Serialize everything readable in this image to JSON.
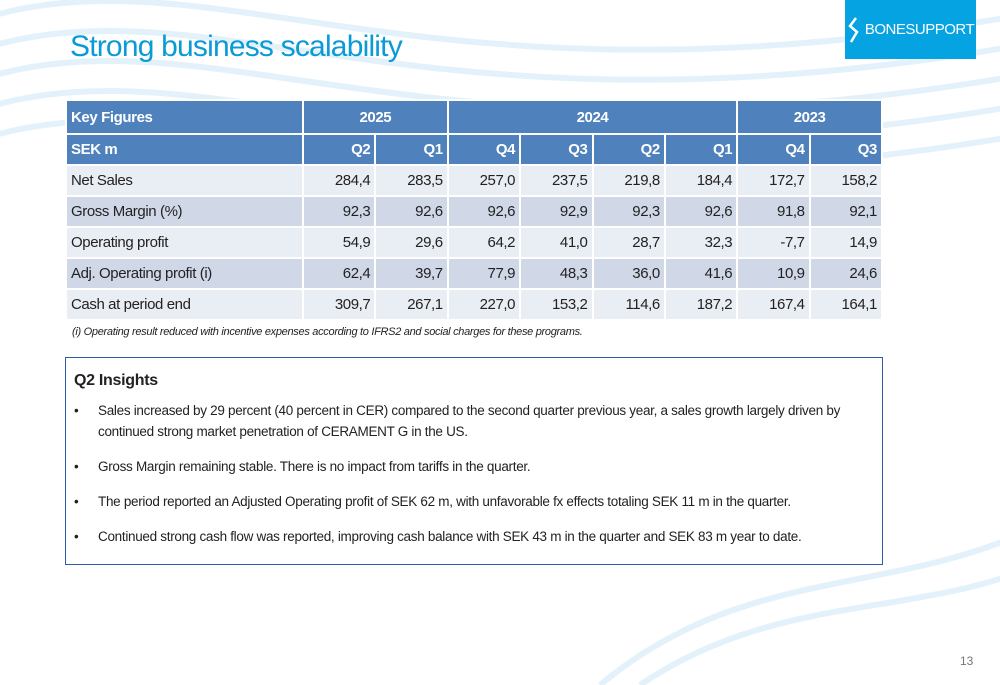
{
  "title": "Strong business scalability",
  "logo_text": "BONESUPPORT",
  "table": {
    "header_label": "Key Figures",
    "years": [
      {
        "label": "2025",
        "span": 2
      },
      {
        "label": "2024",
        "span": 4
      },
      {
        "label": "2023",
        "span": 2
      }
    ],
    "unit_label": "SEK m",
    "quarters": [
      "Q2",
      "Q1",
      "Q4",
      "Q3",
      "Q2",
      "Q1",
      "Q4",
      "Q3"
    ],
    "rows": [
      {
        "label": "Net Sales",
        "values": [
          "284,4",
          "283,5",
          "257,0",
          "237,5",
          "219,8",
          "184,4",
          "172,7",
          "158,2"
        ]
      },
      {
        "label": "Gross Margin (%)",
        "values": [
          "92,3",
          "92,6",
          "92,6",
          "92,9",
          "92,3",
          "92,6",
          "91,8",
          "92,1"
        ]
      },
      {
        "label": "Operating profit",
        "values": [
          "54,9",
          "29,6",
          "64,2",
          "41,0",
          "28,7",
          "32,3",
          "-7,7",
          "14,9"
        ]
      },
      {
        "label": "Adj. Operating profit (i)",
        "values": [
          "62,4",
          "39,7",
          "77,9",
          "48,3",
          "36,0",
          "41,6",
          "10,9",
          "24,6"
        ]
      },
      {
        "label": "Cash at period end",
        "values": [
          "309,7",
          "267,1",
          "227,0",
          "153,2",
          "114,6",
          "187,2",
          "167,4",
          "164,1"
        ]
      }
    ]
  },
  "footnote": "(i) Operating result reduced with incentive expenses according to IFRS2 and social charges for these programs.",
  "insights": {
    "heading": "Q2 Insights",
    "bullets": [
      "Sales increased by 29 percent (40 percent in CER) compared to the second quarter previous year, a sales growth largely driven by continued strong market penetration of CERAMENT G in the US.",
      "Gross Margin remaining stable. There is no impact from tariffs in the quarter.",
      "The period reported an Adjusted Operating profit of SEK 62 m, with unfavorable fx effects totaling SEK 11 m in the quarter.",
      "Continued strong cash flow was reported, improving cash balance with SEK 43 m in the quarter and SEK 83 m year to date."
    ]
  },
  "page_number": "13"
}
